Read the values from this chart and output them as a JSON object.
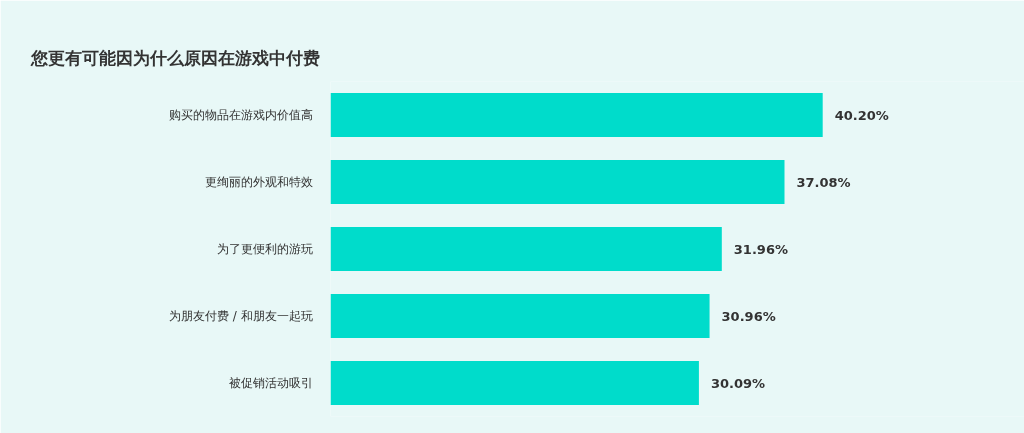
{
  "chart_data": {
    "type": "bar",
    "orientation": "horizontal",
    "title": "您更有可能因为什么原因在游戏中付费",
    "categories": [
      "购买的物品在游戏内价值高",
      "更绚丽的外观和特效",
      "为了更便利的游玩",
      "为朋友付费 / 和朋友一起玩",
      "被促销活动吸引"
    ],
    "values": [
      40.2,
      37.08,
      31.96,
      30.96,
      30.09
    ],
    "color": "#00dccb",
    "value_labels": [
      "40.20%",
      "37.08%",
      "31.96%",
      "30.96%",
      "30.09%"
    ],
    "grid": false
  }
}
